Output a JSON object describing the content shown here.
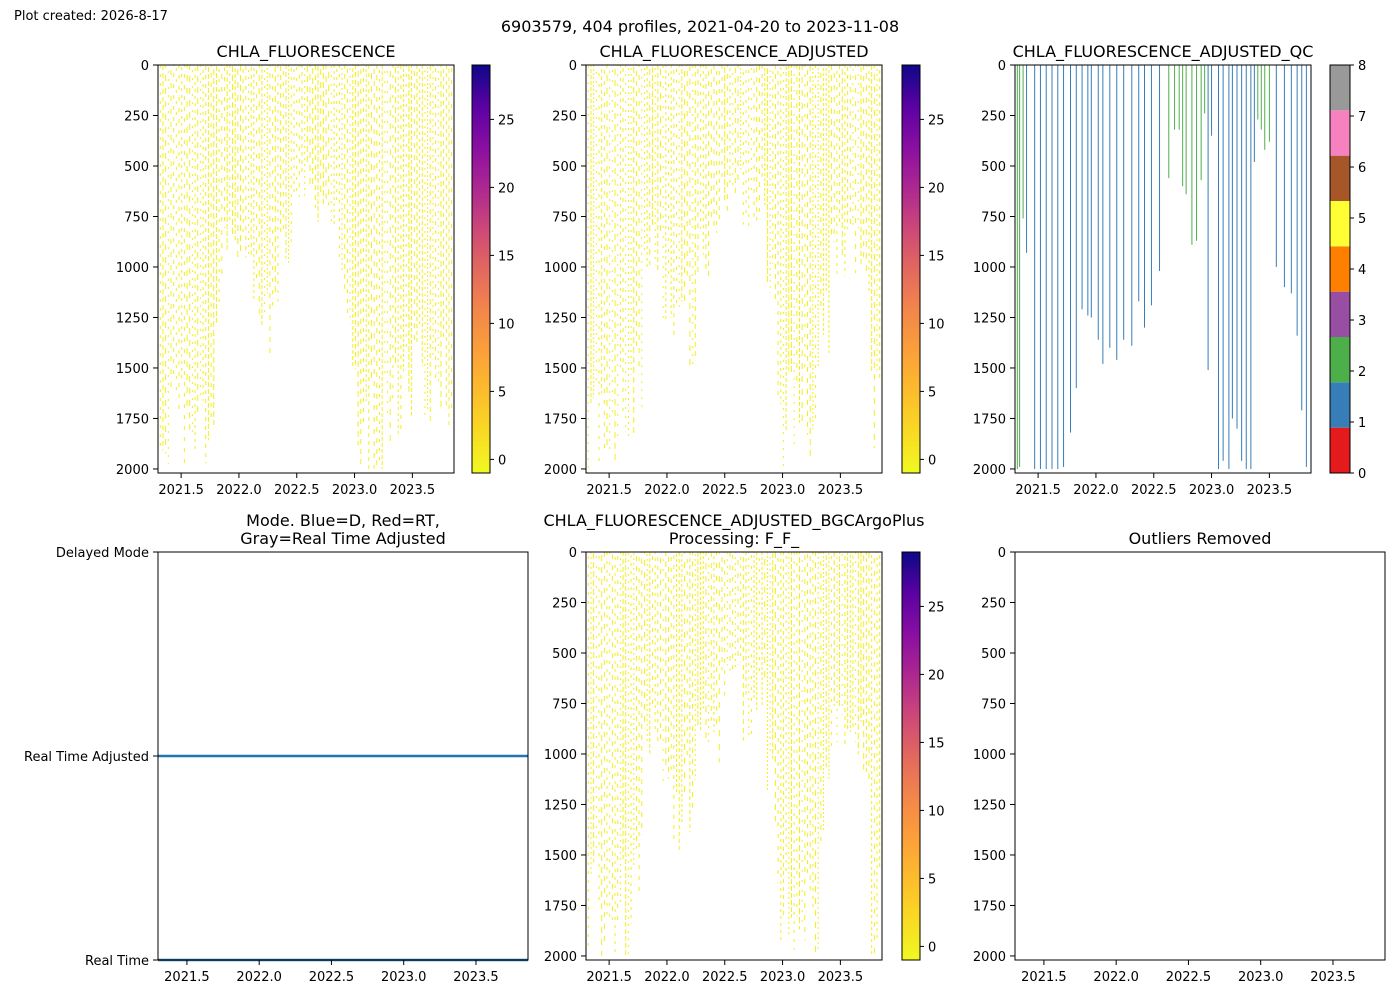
{
  "figure": {
    "created_label": "Plot created: 2026-8-17",
    "suptitle": "6903579, 404 profiles, 2021-04-20 to 2023-11-08"
  },
  "chart_data": [
    {
      "id": "chla",
      "type": "heatmap",
      "title": "CHLA_FLUORESCENCE",
      "x_range": [
        2021.3,
        2023.86
      ],
      "x_ticks": [
        2021.5,
        2022.0,
        2022.5,
        2023.0,
        2023.5
      ],
      "y_range": [
        2020,
        0
      ],
      "y_ticks": [
        0,
        250,
        500,
        750,
        1000,
        1250,
        1500,
        1750,
        2000
      ],
      "colorbar": {
        "colormap": "plasma_r",
        "range": [
          -1,
          29
        ],
        "ticks": [
          0,
          5,
          10,
          15,
          20,
          25
        ]
      },
      "values_near": 0,
      "profile_max_depth": [
        [
          2021.32,
          2000
        ],
        [
          2021.38,
          2000
        ],
        [
          2021.45,
          1980
        ],
        [
          2021.52,
          1960
        ],
        [
          2021.6,
          1980
        ],
        [
          2021.68,
          1990
        ],
        [
          2021.75,
          1990
        ],
        [
          2021.82,
          1250
        ],
        [
          2021.9,
          1000
        ],
        [
          2022.0,
          1000
        ],
        [
          2022.08,
          1000
        ],
        [
          2022.15,
          1360
        ],
        [
          2022.22,
          1450
        ],
        [
          2022.3,
          1460
        ],
        [
          2022.38,
          1000
        ],
        [
          2022.45,
          1010
        ],
        [
          2022.5,
          700
        ],
        [
          2022.6,
          620
        ],
        [
          2022.7,
          760
        ],
        [
          2022.8,
          820
        ],
        [
          2022.9,
          1260
        ],
        [
          2022.98,
          1520
        ],
        [
          2023.05,
          1980
        ],
        [
          2023.12,
          1990
        ],
        [
          2023.2,
          1990
        ],
        [
          2023.28,
          1990
        ],
        [
          2023.36,
          1950
        ],
        [
          2023.45,
          1820
        ],
        [
          2023.55,
          1700
        ],
        [
          2023.65,
          1720
        ],
        [
          2023.72,
          1740
        ],
        [
          2023.8,
          1720
        ]
      ]
    },
    {
      "id": "chla_adj",
      "type": "heatmap",
      "title": "CHLA_FLUORESCENCE_ADJUSTED",
      "x_range": [
        2021.3,
        2023.86
      ],
      "x_ticks": [
        2021.5,
        2022.0,
        2022.5,
        2023.0,
        2023.5
      ],
      "y_range": [
        2020,
        0
      ],
      "y_ticks": [
        0,
        250,
        500,
        750,
        1000,
        1250,
        1500,
        1750,
        2000
      ],
      "colorbar": {
        "colormap": "plasma_r",
        "range": [
          -1,
          29
        ],
        "ticks": [
          0,
          5,
          10,
          15,
          20,
          25
        ]
      },
      "values_near": 0,
      "profile_max_depth": [
        [
          2021.32,
          2000
        ],
        [
          2021.38,
          1980
        ],
        [
          2021.45,
          1990
        ],
        [
          2021.52,
          1980
        ],
        [
          2021.6,
          1990
        ],
        [
          2021.68,
          1990
        ],
        [
          2021.75,
          1820
        ],
        [
          2021.82,
          1000
        ],
        [
          2021.9,
          1000
        ],
        [
          2022.0,
          1300
        ],
        [
          2022.08,
          1450
        ],
        [
          2022.15,
          1300
        ],
        [
          2022.22,
          1440
        ],
        [
          2022.3,
          1000
        ],
        [
          2022.38,
          1000
        ],
        [
          2022.45,
          1000
        ],
        [
          2022.5,
          700
        ],
        [
          2022.6,
          630
        ],
        [
          2022.7,
          800
        ],
        [
          2022.8,
          760
        ],
        [
          2022.9,
          1300
        ],
        [
          2022.98,
          1990
        ],
        [
          2023.05,
          1990
        ],
        [
          2023.12,
          1990
        ],
        [
          2023.2,
          1990
        ],
        [
          2023.28,
          1980
        ],
        [
          2023.36,
          1400
        ],
        [
          2023.45,
          1000
        ],
        [
          2023.55,
          1000
        ],
        [
          2023.65,
          1000
        ],
        [
          2023.72,
          1100
        ],
        [
          2023.8,
          2000
        ]
      ]
    },
    {
      "id": "chla_adj_qc",
      "type": "heatmap",
      "title": "CHLA_FLUORESCENCE_ADJUSTED_QC",
      "x_range": [
        2021.3,
        2023.86
      ],
      "x_ticks": [
        2021.5,
        2022.0,
        2022.5,
        2023.0,
        2023.5
      ],
      "y_range": [
        2020,
        0
      ],
      "y_ticks": [
        0,
        250,
        500,
        750,
        1000,
        1250,
        1500,
        1750,
        2000
      ],
      "colorbar": {
        "type": "discrete",
        "range": [
          0,
          8
        ],
        "ticks": [
          0,
          1,
          2,
          3,
          4,
          5,
          6,
          7,
          8
        ],
        "colors": [
          "#e41a1c",
          "#377eb8",
          "#4daf4a",
          "#984ea3",
          "#ff7f00",
          "#ffff33",
          "#a65628",
          "#f781bf",
          "#999999"
        ]
      },
      "profiles": [
        [
          2021.32,
          2000,
          2
        ],
        [
          2021.34,
          1990,
          2
        ],
        [
          2021.37,
          760,
          2
        ],
        [
          2021.4,
          930,
          1
        ],
        [
          2021.47,
          2000,
          1
        ],
        [
          2021.52,
          2000,
          1
        ],
        [
          2021.57,
          2000,
          1
        ],
        [
          2021.62,
          2000,
          1
        ],
        [
          2021.67,
          2000,
          1
        ],
        [
          2021.72,
          1990,
          1
        ],
        [
          2021.78,
          1820,
          1
        ],
        [
          2021.83,
          1600,
          1
        ],
        [
          2021.88,
          1210,
          1
        ],
        [
          2021.93,
          1240,
          1
        ],
        [
          2021.96,
          1250,
          1
        ],
        [
          2022.02,
          1360,
          1
        ],
        [
          2022.06,
          1480,
          1
        ],
        [
          2022.12,
          1400,
          1
        ],
        [
          2022.18,
          1460,
          1
        ],
        [
          2022.24,
          1360,
          1
        ],
        [
          2022.31,
          1390,
          1
        ],
        [
          2022.37,
          1170,
          1
        ],
        [
          2022.42,
          1300,
          1
        ],
        [
          2022.48,
          1190,
          1
        ],
        [
          2022.55,
          1020,
          1
        ],
        [
          2022.63,
          560,
          2
        ],
        [
          2022.68,
          320,
          2
        ],
        [
          2022.72,
          320,
          2
        ],
        [
          2022.75,
          600,
          2
        ],
        [
          2022.78,
          640,
          2
        ],
        [
          2022.83,
          890,
          2
        ],
        [
          2022.87,
          870,
          2
        ],
        [
          2022.91,
          570,
          2
        ],
        [
          2022.94,
          240,
          2
        ],
        [
          2022.97,
          1510,
          1
        ],
        [
          2023.0,
          350,
          1
        ],
        [
          2023.06,
          2000,
          1
        ],
        [
          2023.1,
          1960,
          1
        ],
        [
          2023.15,
          2000,
          1
        ],
        [
          2023.18,
          1750,
          1
        ],
        [
          2023.22,
          1800,
          1
        ],
        [
          2023.26,
          1960,
          1
        ],
        [
          2023.3,
          2000,
          1
        ],
        [
          2023.34,
          2000,
          1
        ],
        [
          2023.37,
          480,
          1
        ],
        [
          2023.4,
          270,
          2
        ],
        [
          2023.43,
          320,
          2
        ],
        [
          2023.46,
          420,
          2
        ],
        [
          2023.5,
          380,
          2
        ],
        [
          2023.56,
          1000,
          1
        ],
        [
          2023.63,
          1100,
          1
        ],
        [
          2023.69,
          1130,
          1
        ],
        [
          2023.74,
          1340,
          1
        ],
        [
          2023.78,
          1710,
          1
        ],
        [
          2023.82,
          1990,
          1
        ]
      ]
    },
    {
      "id": "mode",
      "type": "line",
      "title": "Mode. Blue=D, Red=RT,\nGray=Real Time Adjusted",
      "x_range": [
        2021.3,
        2023.86
      ],
      "x_ticks": [
        2021.5,
        2022.0,
        2022.5,
        2023.0,
        2023.5
      ],
      "y_range": [
        0,
        2
      ],
      "y_ticks": [
        {
          "value": 2,
          "label": "Delayed Mode"
        },
        {
          "value": 1,
          "label": "Real Time Adjusted"
        },
        {
          "value": 0,
          "label": "Real Time"
        }
      ],
      "series": [
        {
          "color": "#1f77b4",
          "y": 1,
          "x": [
            2021.3,
            2023.86
          ]
        },
        {
          "color": "#1f77b4",
          "y": 0,
          "x": [
            2021.3,
            2023.86
          ]
        }
      ]
    },
    {
      "id": "chla_bgc",
      "type": "heatmap",
      "title": "CHLA_FLUORESCENCE_ADJUSTED_BGCArgoPlus\nProcessing: F_F_",
      "x_range": [
        2021.3,
        2023.86
      ],
      "x_ticks": [
        2021.5,
        2022.0,
        2022.5,
        2023.0,
        2023.5
      ],
      "y_range": [
        2020,
        0
      ],
      "y_ticks": [
        0,
        250,
        500,
        750,
        1000,
        1250,
        1500,
        1750,
        2000
      ],
      "colorbar": {
        "colormap": "plasma_r",
        "range": [
          -1,
          29
        ],
        "ticks": [
          0,
          5,
          10,
          15,
          20,
          25
        ]
      },
      "values_near": 0,
      "profile_max_depth": [
        [
          2021.32,
          2000
        ],
        [
          2021.38,
          1990
        ],
        [
          2021.45,
          1990
        ],
        [
          2021.52,
          1980
        ],
        [
          2021.6,
          1990
        ],
        [
          2021.68,
          1990
        ],
        [
          2021.75,
          1820
        ],
        [
          2021.82,
          1000
        ],
        [
          2021.9,
          1000
        ],
        [
          2022.0,
          1300
        ],
        [
          2022.08,
          1450
        ],
        [
          2022.15,
          1300
        ],
        [
          2022.22,
          1440
        ],
        [
          2022.3,
          1000
        ],
        [
          2022.38,
          1000
        ],
        [
          2022.45,
          1000
        ],
        [
          2022.5,
          700
        ],
        [
          2022.6,
          630
        ],
        [
          2022.7,
          900
        ],
        [
          2022.8,
          760
        ],
        [
          2022.9,
          1300
        ],
        [
          2022.98,
          1990
        ],
        [
          2023.05,
          1990
        ],
        [
          2023.12,
          1990
        ],
        [
          2023.2,
          1990
        ],
        [
          2023.28,
          1980
        ],
        [
          2023.36,
          1400
        ],
        [
          2023.45,
          1000
        ],
        [
          2023.55,
          1000
        ],
        [
          2023.65,
          1000
        ],
        [
          2023.72,
          1100
        ],
        [
          2023.8,
          2000
        ]
      ]
    },
    {
      "id": "outliers",
      "type": "scatter",
      "title": "Outliers Removed",
      "x_range": [
        2021.3,
        2023.86
      ],
      "x_ticks": [
        2021.5,
        2022.0,
        2022.5,
        2023.0,
        2023.5
      ],
      "y_range": [
        2020,
        0
      ],
      "y_ticks": [
        0,
        250,
        500,
        750,
        1000,
        1250,
        1500,
        1750,
        2000
      ],
      "points": []
    }
  ]
}
